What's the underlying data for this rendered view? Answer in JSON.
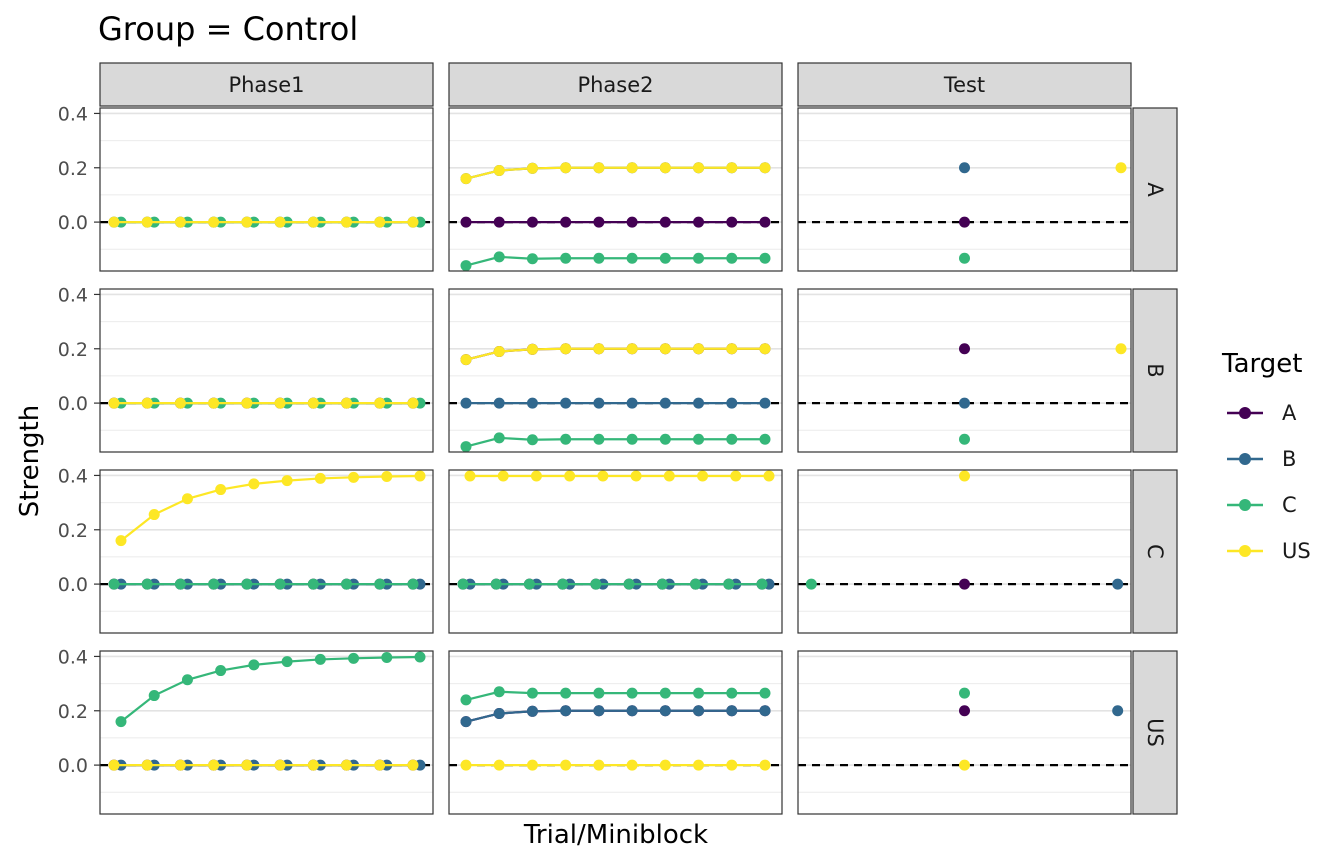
{
  "chart_data": {
    "type": "line",
    "title": "Group = Control",
    "xlabel": "Trial/Miniblock",
    "ylabel": "Strength",
    "legend_title": "Target",
    "legend_position": "right",
    "col_facets": [
      "Phase1",
      "Phase2",
      "Test"
    ],
    "row_facets": [
      "A",
      "B",
      "C",
      "US"
    ],
    "yticks": [
      0.4,
      0.2,
      0.0
    ],
    "ylim": [
      -0.18,
      0.42
    ],
    "reference_line_y": 0.0,
    "series": [
      {
        "name": "A",
        "color": "#440154"
      },
      {
        "name": "B",
        "color": "#31688E"
      },
      {
        "name": "C",
        "color": "#35B779"
      },
      {
        "name": "US",
        "color": "#FDE725"
      }
    ],
    "panels": [
      {
        "row": "A",
        "col": "Phase1",
        "paired": true,
        "series": {
          "B": [
            0,
            0,
            0,
            0,
            0,
            0,
            0,
            0,
            0,
            0
          ],
          "C": [
            0,
            0,
            0,
            0,
            0,
            0,
            0,
            0,
            0,
            0
          ],
          "US": [
            0,
            0,
            0,
            0,
            0,
            0,
            0,
            0,
            0,
            0
          ]
        }
      },
      {
        "row": "A",
        "col": "Phase2",
        "paired": false,
        "series": {
          "A": [
            0,
            0,
            0,
            0,
            0,
            0,
            0,
            0,
            0,
            0
          ],
          "B": [
            0.16,
            0.19,
            0.198,
            0.2,
            0.2,
            0.2,
            0.2,
            0.2,
            0.2,
            0.2
          ],
          "US": [
            0.16,
            0.19,
            0.198,
            0.2,
            0.2,
            0.2,
            0.2,
            0.2,
            0.2,
            0.2
          ],
          "C": [
            -0.16,
            -0.128,
            -0.135,
            -0.133,
            -0.133,
            -0.133,
            -0.133,
            -0.133,
            -0.133,
            -0.133
          ]
        }
      },
      {
        "row": "A",
        "col": "Test",
        "points": [
          {
            "target": "B",
            "x": 0.5,
            "y": 0.2
          },
          {
            "target": "A",
            "x": 0.5,
            "y": 0.0
          },
          {
            "target": "C",
            "x": 0.5,
            "y": -0.133
          },
          {
            "target": "US",
            "x": 0.97,
            "y": 0.2
          }
        ]
      },
      {
        "row": "B",
        "col": "Phase1",
        "paired": true,
        "series": {
          "A": [
            0,
            0,
            0,
            0,
            0,
            0,
            0,
            0,
            0,
            0
          ],
          "C": [
            0,
            0,
            0,
            0,
            0,
            0,
            0,
            0,
            0,
            0
          ],
          "US": [
            0,
            0,
            0,
            0,
            0,
            0,
            0,
            0,
            0,
            0
          ]
        }
      },
      {
        "row": "B",
        "col": "Phase2",
        "paired": false,
        "series": {
          "B": [
            0,
            0,
            0,
            0,
            0,
            0,
            0,
            0,
            0,
            0
          ],
          "A": [
            0.16,
            0.19,
            0.198,
            0.2,
            0.2,
            0.2,
            0.2,
            0.2,
            0.2,
            0.2
          ],
          "US": [
            0.16,
            0.19,
            0.198,
            0.2,
            0.2,
            0.2,
            0.2,
            0.2,
            0.2,
            0.2
          ],
          "C": [
            -0.16,
            -0.128,
            -0.135,
            -0.133,
            -0.133,
            -0.133,
            -0.133,
            -0.133,
            -0.133,
            -0.133
          ]
        }
      },
      {
        "row": "B",
        "col": "Test",
        "points": [
          {
            "target": "A",
            "x": 0.5,
            "y": 0.2
          },
          {
            "target": "B",
            "x": 0.5,
            "y": 0.0
          },
          {
            "target": "C",
            "x": 0.5,
            "y": -0.133
          },
          {
            "target": "US",
            "x": 0.97,
            "y": 0.2
          }
        ]
      },
      {
        "row": "C",
        "col": "Phase1",
        "paired": true,
        "series": {
          "A": [
            0,
            0,
            0,
            0,
            0,
            0,
            0,
            0,
            0,
            0
          ],
          "B": [
            0,
            0,
            0,
            0,
            0,
            0,
            0,
            0,
            0,
            0
          ],
          "C": [
            0,
            0,
            0,
            0,
            0,
            0,
            0,
            0,
            0,
            0
          ],
          "US": [
            0.16,
            0.256,
            0.314,
            0.348,
            0.369,
            0.381,
            0.389,
            0.393,
            0.396,
            0.398
          ]
        }
      },
      {
        "row": "C",
        "col": "Phase2",
        "paired": true,
        "series": {
          "A": [
            0,
            0,
            0,
            0,
            0,
            0,
            0,
            0,
            0,
            0
          ],
          "B": [
            0,
            0,
            0,
            0,
            0,
            0,
            0,
            0,
            0,
            0
          ],
          "C": [
            0,
            0,
            0,
            0,
            0,
            0,
            0,
            0,
            0,
            0
          ],
          "US": [
            0.398,
            0.398,
            0.398,
            0.398,
            0.398,
            0.398,
            0.398,
            0.398,
            0.398,
            0.398
          ]
        }
      },
      {
        "row": "C",
        "col": "Test",
        "points": [
          {
            "target": "US",
            "x": 0.5,
            "y": 0.398
          },
          {
            "target": "C",
            "x": 0.04,
            "y": 0.0
          },
          {
            "target": "A",
            "x": 0.5,
            "y": 0.0
          },
          {
            "target": "B",
            "x": 0.96,
            "y": 0.0
          }
        ]
      },
      {
        "row": "US",
        "col": "Phase1",
        "paired": true,
        "series": {
          "A": [
            0,
            0,
            0,
            0,
            0,
            0,
            0,
            0,
            0,
            0
          ],
          "B": [
            0,
            0,
            0,
            0,
            0,
            0,
            0,
            0,
            0,
            0
          ],
          "US": [
            0,
            0,
            0,
            0,
            0,
            0,
            0,
            0,
            0,
            0
          ],
          "C": [
            0.16,
            0.256,
            0.314,
            0.348,
            0.369,
            0.381,
            0.389,
            0.393,
            0.396,
            0.398
          ]
        }
      },
      {
        "row": "US",
        "col": "Phase2",
        "paired": false,
        "series": {
          "US": [
            0,
            0,
            0,
            0,
            0,
            0,
            0,
            0,
            0,
            0
          ],
          "A": [
            0.16,
            0.19,
            0.198,
            0.2,
            0.2,
            0.2,
            0.2,
            0.2,
            0.2,
            0.2
          ],
          "B": [
            0.16,
            0.19,
            0.198,
            0.2,
            0.2,
            0.2,
            0.2,
            0.2,
            0.2,
            0.2
          ],
          "C": [
            0.24,
            0.27,
            0.265,
            0.265,
            0.265,
            0.265,
            0.265,
            0.265,
            0.265,
            0.265
          ]
        }
      },
      {
        "row": "US",
        "col": "Test",
        "points": [
          {
            "target": "C",
            "x": 0.5,
            "y": 0.265
          },
          {
            "target": "A",
            "x": 0.5,
            "y": 0.2
          },
          {
            "target": "B",
            "x": 0.96,
            "y": 0.2
          },
          {
            "target": "US",
            "x": 0.5,
            "y": 0.0
          }
        ]
      }
    ]
  }
}
